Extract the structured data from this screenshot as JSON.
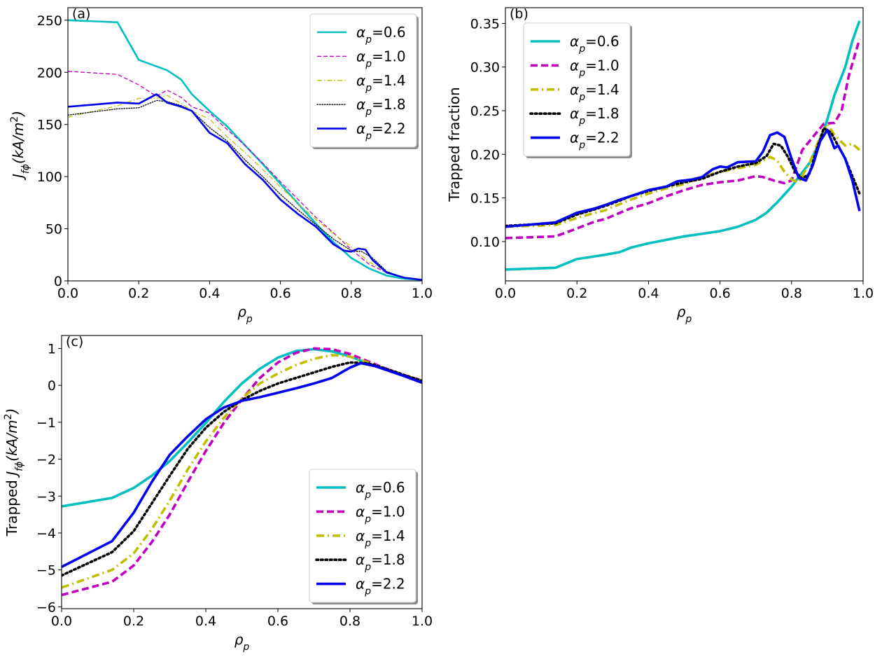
{
  "chart_data": [
    {
      "id": "a",
      "type": "line",
      "panel_label": "(a)",
      "xlabel": "ρ",
      "xlabel_sub": "p",
      "ylabel": "J(kA/m²)",
      "ylabel_main": "J",
      "ylabel_sub": "fϕ",
      "ylabel_unit_pre": "(kA/m",
      "ylabel_unit_sup": "2",
      "ylabel_unit_post": ")",
      "xlim": [
        0,
        1.0
      ],
      "ylim": [
        0,
        262
      ],
      "xticks": [
        0.0,
        0.2,
        0.4,
        0.6,
        0.8,
        1.0
      ],
      "xtick_labels": [
        "0.0",
        "0.2",
        "0.4",
        "0.6",
        "0.8",
        "1.0"
      ],
      "yticks": [
        0,
        50,
        100,
        150,
        200,
        250
      ],
      "ytick_labels": [
        "0",
        "50",
        "100",
        "150",
        "200",
        "250"
      ],
      "legend_position": "top-right",
      "series": [
        {
          "name": "αp=0.6",
          "label_value": "0.6",
          "color": "#00bfbf",
          "dash": "solid",
          "width": "medium",
          "x": [
            0,
            0.14,
            0.2,
            0.28,
            0.32,
            0.35,
            0.4,
            0.45,
            0.5,
            0.55,
            0.6,
            0.65,
            0.7,
            0.75,
            0.8,
            0.85,
            0.9,
            0.95,
            1.0
          ],
          "y": [
            250,
            248,
            212,
            202,
            193,
            179,
            163,
            148,
            130,
            112,
            93,
            74,
            55,
            37,
            22,
            12,
            5,
            2,
            1
          ]
        },
        {
          "name": "αp=1.0",
          "label_value": "1.0",
          "color": "#bf00bf",
          "dash": "dashed-thin",
          "width": "thin",
          "x": [
            0,
            0.14,
            0.2,
            0.25,
            0.28,
            0.32,
            0.35,
            0.4,
            0.45,
            0.5,
            0.55,
            0.6,
            0.65,
            0.7,
            0.75,
            0.8,
            0.85,
            0.9,
            0.95,
            1.0
          ],
          "y": [
            201,
            198,
            188,
            177,
            183,
            176,
            167,
            161,
            145,
            130,
            113,
            95,
            78,
            61,
            46,
            30,
            16,
            8,
            3,
            1
          ]
        },
        {
          "name": "αp=1.4",
          "label_value": "1.4",
          "color": "#bfbf00",
          "dash": "dashdot-thin",
          "width": "thin",
          "x": [
            0,
            0.14,
            0.2,
            0.25,
            0.28,
            0.32,
            0.35,
            0.4,
            0.45,
            0.5,
            0.55,
            0.6,
            0.65,
            0.7,
            0.75,
            0.8,
            0.85,
            0.9,
            0.95,
            1.0
          ],
          "y": [
            157,
            168,
            175,
            175,
            178,
            170,
            163,
            155,
            138,
            123,
            107,
            90,
            74,
            59,
            45,
            33,
            18,
            9,
            3,
            1
          ]
        },
        {
          "name": "αp=1.8",
          "label_value": "1.8",
          "color": "#000000",
          "dash": "dotted-thin",
          "width": "thin",
          "x": [
            0,
            0.14,
            0.2,
            0.25,
            0.28,
            0.32,
            0.35,
            0.4,
            0.45,
            0.5,
            0.55,
            0.6,
            0.65,
            0.7,
            0.75,
            0.8,
            0.83,
            0.86,
            0.9,
            0.95,
            1.0
          ],
          "y": [
            159,
            165,
            166,
            173,
            172,
            168,
            163,
            147,
            134,
            116,
            100,
            83,
            68,
            54,
            40,
            29,
            28,
            22,
            9,
            3,
            1
          ]
        },
        {
          "name": "αp=2.2",
          "label_value": "2.2",
          "color": "#0000ee",
          "dash": "solid",
          "width": "medium",
          "x": [
            0,
            0.14,
            0.2,
            0.25,
            0.28,
            0.32,
            0.35,
            0.4,
            0.45,
            0.5,
            0.55,
            0.6,
            0.65,
            0.7,
            0.75,
            0.78,
            0.8,
            0.82,
            0.84,
            0.86,
            0.9,
            0.95,
            1.0
          ],
          "y": [
            167,
            171,
            170,
            179,
            171,
            167,
            163,
            142,
            132,
            112,
            97,
            78,
            64,
            52,
            35,
            29,
            28,
            31,
            30,
            20,
            8,
            3,
            1
          ]
        }
      ]
    },
    {
      "id": "b",
      "type": "line",
      "panel_label": "(b)",
      "xlabel": "ρ",
      "xlabel_sub": "p",
      "ylabel": "Trapped fraction",
      "xlim": [
        0,
        1.0
      ],
      "ylim": [
        0.055,
        0.368
      ],
      "xticks": [
        0.0,
        0.2,
        0.4,
        0.6,
        0.8,
        1.0
      ],
      "xtick_labels": [
        "0.0",
        "0.2",
        "0.4",
        "0.6",
        "0.8",
        "1.0"
      ],
      "yticks": [
        0.1,
        0.15,
        0.2,
        0.25,
        0.3,
        0.35
      ],
      "ytick_labels": [
        "0.10",
        "0.15",
        "0.20",
        "0.25",
        "0.30",
        "0.35"
      ],
      "legend_position": "top-left",
      "series": [
        {
          "name": "αp=0.6",
          "label_value": "0.6",
          "color": "#00bfbf",
          "dash": "solid",
          "width": "thick",
          "x": [
            0,
            0.14,
            0.2,
            0.28,
            0.32,
            0.35,
            0.4,
            0.45,
            0.5,
            0.55,
            0.6,
            0.65,
            0.7,
            0.73,
            0.76,
            0.8,
            0.85,
            0.88,
            0.9,
            0.92,
            0.95,
            0.97,
            0.99
          ],
          "y": [
            0.068,
            0.07,
            0.08,
            0.085,
            0.088,
            0.093,
            0.098,
            0.102,
            0.106,
            0.109,
            0.112,
            0.117,
            0.125,
            0.133,
            0.145,
            0.163,
            0.19,
            0.215,
            0.24,
            0.268,
            0.3,
            0.33,
            0.353
          ]
        },
        {
          "name": "αp=1.0",
          "label_value": "1.0",
          "color": "#bf00bf",
          "dash": "dashed",
          "width": "thick",
          "x": [
            0,
            0.14,
            0.2,
            0.25,
            0.28,
            0.32,
            0.35,
            0.4,
            0.45,
            0.5,
            0.55,
            0.6,
            0.65,
            0.68,
            0.7,
            0.72,
            0.75,
            0.78,
            0.8,
            0.83,
            0.86,
            0.89,
            0.92,
            0.94,
            0.96,
            0.99
          ],
          "y": [
            0.104,
            0.106,
            0.115,
            0.123,
            0.126,
            0.133,
            0.138,
            0.144,
            0.152,
            0.159,
            0.165,
            0.168,
            0.17,
            0.173,
            0.175,
            0.174,
            0.17,
            0.167,
            0.17,
            0.205,
            0.22,
            0.235,
            0.236,
            0.25,
            0.29,
            0.332
          ]
        },
        {
          "name": "αp=1.4",
          "label_value": "1.4",
          "color": "#bfbf00",
          "dash": "dashdot",
          "width": "thick",
          "x": [
            0,
            0.14,
            0.2,
            0.25,
            0.28,
            0.32,
            0.35,
            0.4,
            0.45,
            0.5,
            0.55,
            0.6,
            0.65,
            0.7,
            0.74,
            0.76,
            0.78,
            0.8,
            0.82,
            0.85,
            0.88,
            0.9,
            0.92,
            0.95,
            0.97,
            0.99
          ],
          "y": [
            0.117,
            0.119,
            0.127,
            0.133,
            0.136,
            0.143,
            0.148,
            0.155,
            0.161,
            0.166,
            0.174,
            0.18,
            0.184,
            0.188,
            0.197,
            0.193,
            0.18,
            0.171,
            0.168,
            0.19,
            0.22,
            0.235,
            0.222,
            0.21,
            0.212,
            0.205
          ]
        },
        {
          "name": "αp=1.8",
          "label_value": "1.8",
          "color": "#000000",
          "dash": "dotted",
          "width": "thick",
          "x": [
            0,
            0.14,
            0.2,
            0.25,
            0.28,
            0.32,
            0.35,
            0.4,
            0.45,
            0.5,
            0.55,
            0.6,
            0.65,
            0.7,
            0.73,
            0.75,
            0.77,
            0.79,
            0.81,
            0.83,
            0.85,
            0.87,
            0.89,
            0.91,
            0.93,
            0.95,
            0.97,
            0.99
          ],
          "y": [
            0.118,
            0.121,
            0.131,
            0.137,
            0.141,
            0.147,
            0.152,
            0.158,
            0.163,
            0.168,
            0.172,
            0.18,
            0.186,
            0.19,
            0.198,
            0.212,
            0.21,
            0.197,
            0.18,
            0.172,
            0.178,
            0.205,
            0.23,
            0.225,
            0.21,
            0.195,
            0.175,
            0.155
          ]
        },
        {
          "name": "αp=2.2",
          "label_value": "2.2",
          "color": "#0000ee",
          "dash": "solid",
          "width": "thick",
          "x": [
            0,
            0.14,
            0.2,
            0.25,
            0.28,
            0.32,
            0.35,
            0.4,
            0.45,
            0.48,
            0.52,
            0.55,
            0.58,
            0.6,
            0.62,
            0.65,
            0.7,
            0.72,
            0.74,
            0.76,
            0.78,
            0.8,
            0.82,
            0.84,
            0.86,
            0.88,
            0.9,
            0.92,
            0.93,
            0.95,
            0.97,
            0.99
          ],
          "y": [
            0.117,
            0.122,
            0.133,
            0.138,
            0.142,
            0.148,
            0.152,
            0.159,
            0.163,
            0.169,
            0.171,
            0.174,
            0.183,
            0.186,
            0.185,
            0.191,
            0.192,
            0.203,
            0.222,
            0.225,
            0.22,
            0.195,
            0.173,
            0.17,
            0.188,
            0.215,
            0.228,
            0.207,
            0.21,
            0.195,
            0.17,
            0.135
          ]
        }
      ]
    },
    {
      "id": "c",
      "type": "line",
      "panel_label": "(c)",
      "xlabel": "ρ",
      "xlabel_sub": "p",
      "ylabel": "Trapped J(kA/m²)",
      "ylabel_pre": "Trapped ",
      "ylabel_main": "J",
      "ylabel_sub": "fϕ",
      "ylabel_unit_pre": "(kA/m",
      "ylabel_unit_sup": "2",
      "ylabel_unit_post": ")",
      "xlim": [
        0,
        1.0
      ],
      "ylim": [
        -6.05,
        1.35
      ],
      "xticks": [
        0.0,
        0.2,
        0.4,
        0.6,
        0.8,
        1.0
      ],
      "xtick_labels": [
        "0.0",
        "0.2",
        "0.4",
        "0.6",
        "0.8",
        "1.0"
      ],
      "yticks": [
        -6,
        -5,
        -4,
        -3,
        -2,
        -1,
        0,
        1
      ],
      "ytick_labels": [
        "−6",
        "−5",
        "−4",
        "−3",
        "−2",
        "−1",
        "0",
        "1"
      ],
      "legend_position": "lower-right",
      "series": [
        {
          "name": "αp=0.6",
          "label_value": "0.6",
          "color": "#00bfbf",
          "dash": "solid",
          "width": "thick",
          "x": [
            0,
            0.14,
            0.2,
            0.25,
            0.3,
            0.35,
            0.4,
            0.45,
            0.5,
            0.55,
            0.6,
            0.65,
            0.7,
            0.75,
            0.8,
            0.85,
            0.9,
            0.95,
            1.0
          ],
          "y": [
            -3.28,
            -3.05,
            -2.78,
            -2.45,
            -2.05,
            -1.55,
            -1.02,
            -0.45,
            0.05,
            0.45,
            0.75,
            0.93,
            0.98,
            0.92,
            0.78,
            0.6,
            0.42,
            0.27,
            0.12
          ]
        },
        {
          "name": "αp=1.0",
          "label_value": "1.0",
          "color": "#bf00bf",
          "dash": "dashed",
          "width": "thick",
          "x": [
            0,
            0.14,
            0.2,
            0.25,
            0.3,
            0.35,
            0.4,
            0.45,
            0.5,
            0.55,
            0.6,
            0.65,
            0.7,
            0.75,
            0.8,
            0.85,
            0.9,
            0.95,
            1.0
          ],
          "y": [
            -5.68,
            -5.32,
            -4.88,
            -4.25,
            -3.5,
            -2.62,
            -1.78,
            -1.02,
            -0.38,
            0.2,
            0.62,
            0.88,
            1.0,
            0.98,
            0.85,
            0.65,
            0.45,
            0.28,
            0.13
          ]
        },
        {
          "name": "αp=1.4",
          "label_value": "1.4",
          "color": "#bfbf00",
          "dash": "dashdot",
          "width": "thick",
          "x": [
            0,
            0.14,
            0.2,
            0.25,
            0.3,
            0.35,
            0.4,
            0.45,
            0.5,
            0.55,
            0.6,
            0.65,
            0.7,
            0.75,
            0.8,
            0.85,
            0.9,
            0.95,
            1.0
          ],
          "y": [
            -5.48,
            -5.0,
            -4.55,
            -3.9,
            -3.12,
            -2.28,
            -1.52,
            -0.88,
            -0.35,
            0.05,
            0.32,
            0.55,
            0.72,
            0.82,
            0.78,
            0.62,
            0.44,
            0.28,
            0.12
          ]
        },
        {
          "name": "αp=1.8",
          "label_value": "1.8",
          "color": "#000000",
          "dash": "dotted",
          "width": "thick",
          "x": [
            0,
            0.14,
            0.2,
            0.25,
            0.3,
            0.35,
            0.4,
            0.45,
            0.5,
            0.55,
            0.6,
            0.65,
            0.7,
            0.75,
            0.8,
            0.85,
            0.9,
            0.95,
            1.0
          ],
          "y": [
            -5.15,
            -4.52,
            -3.95,
            -3.2,
            -2.45,
            -1.72,
            -1.15,
            -0.72,
            -0.4,
            -0.15,
            0.05,
            0.2,
            0.35,
            0.5,
            0.62,
            0.6,
            0.45,
            0.28,
            0.12
          ]
        },
        {
          "name": "αp=2.2",
          "label_value": "2.2",
          "color": "#0000ee",
          "dash": "solid",
          "width": "thick",
          "x": [
            0,
            0.14,
            0.2,
            0.25,
            0.3,
            0.35,
            0.4,
            0.45,
            0.5,
            0.55,
            0.6,
            0.65,
            0.7,
            0.75,
            0.8,
            0.83,
            0.87,
            0.9,
            0.95,
            1.0
          ],
          "y": [
            -4.92,
            -4.22,
            -3.45,
            -2.62,
            -1.88,
            -1.38,
            -0.92,
            -0.6,
            -0.42,
            -0.32,
            -0.2,
            -0.08,
            0.05,
            0.2,
            0.48,
            0.6,
            0.52,
            0.42,
            0.25,
            0.07
          ]
        }
      ]
    }
  ]
}
